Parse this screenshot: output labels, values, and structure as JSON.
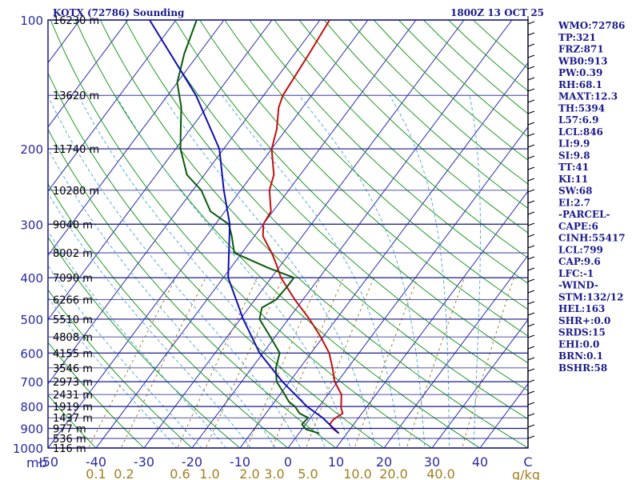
{
  "header": {
    "station": "KOTX (72786) Sounding",
    "datetime": "1800Z 13 OCT 25"
  },
  "indices": [
    "WMO:72786",
    "TP:321",
    "FRZ:871",
    "WB0:913",
    "PW:0.39",
    "RH:68.1",
    "MAXT:12.3",
    "TH:5394",
    "L57:6.9",
    "LCL:846",
    "LI:9.9",
    "SI:9.8",
    "TT:41",
    "KI:11",
    "SW:68",
    "EI:2.7",
    "-PARCEL-",
    "CAPE:6",
    "CINH:55417",
    "LCL:799",
    "CAP:9.6",
    "LFC:-1",
    "-WIND-",
    "STM:132/12",
    "HEL:163",
    "SHR+:0.0",
    "SRDS:15",
    "EHI:0.0",
    "BRN:0.1",
    "BSHR:58"
  ],
  "axes": {
    "pressure_unit_label": "mb",
    "mixing_ratio_unit_label": "g/kg"
  },
  "colors": {
    "isobar": "#1a1a8c",
    "isotherm": "#2a2ab0",
    "dry_adiabat": "#1f9a1f",
    "moist_adiabat": "#5aaad8",
    "mixing_ratio": "#a08020",
    "temperature": "#c01010",
    "dewpoint": "#0a5a0a",
    "parcel": "#1010b0",
    "wind": "#000000"
  },
  "chart_data": {
    "type": "line",
    "subtype": "skew-T log-P sounding diagram",
    "title": "KOTX (72786) Sounding",
    "xlabel": "",
    "ylabel": "mb",
    "x_range_C": [
      -50,
      50
    ],
    "y_range_mb": [
      1000,
      100
    ],
    "y_scale": "log",
    "pressure_ticks": [
      100,
      200,
      300,
      400,
      500,
      600,
      700,
      800,
      900,
      1000
    ],
    "temperature_ticks": [
      -50,
      -40,
      -30,
      -20,
      -10,
      0,
      10,
      20,
      30,
      40,
      50
    ],
    "temperature_tick_labels": [
      "-50",
      "-40",
      "-30",
      "-20",
      "-10",
      "0",
      "10",
      "20",
      "30",
      "40",
      "C"
    ],
    "mixing_ratio_labels": [
      "0.1",
      "0.2",
      "0.6",
      "1.0",
      "2.0",
      "3.0",
      "5.0",
      "10.0",
      "20.0",
      "40.0"
    ],
    "height_labels": [
      {
        "p": 100,
        "label": "16230 m"
      },
      {
        "p": 150,
        "label": "13620 m"
      },
      {
        "p": 200,
        "label": "11740 m"
      },
      {
        "p": 250,
        "label": "10280 m"
      },
      {
        "p": 300,
        "label": "9040 m"
      },
      {
        "p": 350,
        "label": "8002 m"
      },
      {
        "p": 400,
        "label": "7090 m"
      },
      {
        "p": 450,
        "label": "6266 m"
      },
      {
        "p": 500,
        "label": "5510 m"
      },
      {
        "p": 550,
        "label": "4808 m"
      },
      {
        "p": 600,
        "label": "4155 m"
      },
      {
        "p": 650,
        "label": "3546 m"
      },
      {
        "p": 700,
        "label": "2973 m"
      },
      {
        "p": 750,
        "label": "2431 m"
      },
      {
        "p": 800,
        "label": "1919 m"
      },
      {
        "p": 850,
        "label": "1437 m"
      },
      {
        "p": 900,
        "label": "977 m"
      },
      {
        "p": 950,
        "label": "536 m"
      },
      {
        "p": 1000,
        "label": "116 m"
      }
    ],
    "series": [
      {
        "name": "",
        "kind": "temperature",
        "points": [
          [
            924,
            8.3
          ],
          [
            900,
            6.2
          ],
          [
            880,
            5.0
          ],
          [
            860,
            5.0
          ],
          [
            850,
            5.3
          ],
          [
            830,
            6.0
          ],
          [
            810,
            5.0
          ],
          [
            800,
            4.6
          ],
          [
            750,
            2.8
          ],
          [
            700,
            -0.6
          ],
          [
            650,
            -3.2
          ],
          [
            600,
            -6.2
          ],
          [
            550,
            -10.5
          ],
          [
            500,
            -15.6
          ],
          [
            450,
            -21.7
          ],
          [
            400,
            -28.0
          ],
          [
            370,
            -31.3
          ],
          [
            350,
            -33.8
          ],
          [
            320,
            -38.2
          ],
          [
            300,
            -40.0
          ],
          [
            280,
            -40.4
          ],
          [
            250,
            -44.0
          ],
          [
            230,
            -45.5
          ],
          [
            200,
            -50.0
          ],
          [
            180,
            -52.0
          ],
          [
            160,
            -55.0
          ],
          [
            150,
            -56.0
          ],
          [
            120,
            -57.0
          ],
          [
            100,
            -58.0
          ]
        ]
      },
      {
        "name": "",
        "kind": "dewpoint",
        "points": [
          [
            924,
            4.2
          ],
          [
            905,
            0.9
          ],
          [
            880,
            -0.8
          ],
          [
            850,
            -0.5
          ],
          [
            830,
            -3.0
          ],
          [
            800,
            -5.0
          ],
          [
            780,
            -7.0
          ],
          [
            750,
            -9.0
          ],
          [
            700,
            -12.7
          ],
          [
            650,
            -15.0
          ],
          [
            600,
            -16.5
          ],
          [
            550,
            -21.0
          ],
          [
            500,
            -26.0
          ],
          [
            470,
            -27.3
          ],
          [
            450,
            -25.6
          ],
          [
            420,
            -25.3
          ],
          [
            400,
            -25.3
          ],
          [
            380,
            -32.0
          ],
          [
            350,
            -41.6
          ],
          [
            320,
            -44.7
          ],
          [
            300,
            -47.2
          ],
          [
            280,
            -53.0
          ],
          [
            250,
            -58.2
          ],
          [
            230,
            -63.6
          ],
          [
            200,
            -69.0
          ],
          [
            180,
            -72.0
          ],
          [
            160,
            -75.3
          ],
          [
            140,
            -80.0
          ],
          [
            120,
            -83.0
          ],
          [
            100,
            -85.7
          ]
        ]
      },
      {
        "name": "",
        "kind": "parcel",
        "points": [
          [
            924,
            8.3
          ],
          [
            850,
            2.5
          ],
          [
            800,
            -2.5
          ],
          [
            700,
            -11.5
          ],
          [
            600,
            -20.7
          ],
          [
            500,
            -29.4
          ],
          [
            400,
            -39.0
          ],
          [
            300,
            -47.0
          ],
          [
            250,
            -53.5
          ],
          [
            200,
            -60.9
          ],
          [
            150,
            -74.1
          ],
          [
            100,
            -95.5
          ]
        ]
      }
    ],
    "grid": true,
    "legend": "none"
  }
}
